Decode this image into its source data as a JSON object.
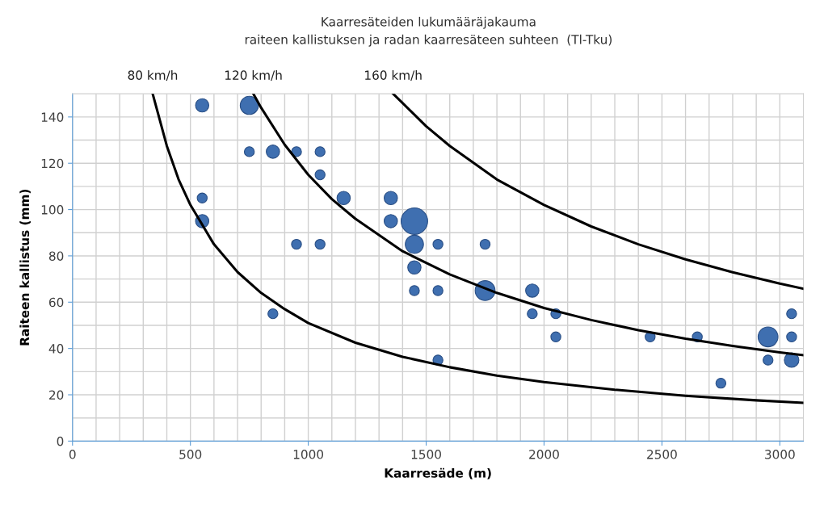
{
  "chart_data": {
    "type": "bubble",
    "title": "Kaarresäteiden lukumääräjakauma",
    "subtitle": "raiteen kallistuksen ja radan kaarresäteen suhteen  (Tl-Tku)",
    "xlabel": "Kaarresäde (m)",
    "ylabel": "Raiteen kallistus (mm)",
    "xlim": [
      0,
      3100
    ],
    "ylim": [
      0,
      150
    ],
    "xticks": [
      0,
      {
        "value": 100,
        "label": null
      },
      {
        "value": 200,
        "label": null
      },
      {
        "value": 300,
        "label": null
      },
      {
        "value": 400,
        "label": null
      },
      500,
      {
        "value": 600,
        "label": null
      },
      {
        "value": 700,
        "label": null
      },
      {
        "value": 800,
        "label": null
      },
      {
        "value": 900,
        "label": null
      },
      1000,
      {
        "value": 1100,
        "label": null
      },
      {
        "value": 1200,
        "label": null
      },
      {
        "value": 1300,
        "label": null
      },
      {
        "value": 1400,
        "label": null
      },
      1500,
      {
        "value": 1600,
        "label": null
      },
      {
        "value": 1700,
        "label": null
      },
      {
        "value": 1800,
        "label": null
      },
      {
        "value": 1900,
        "label": null
      },
      2000,
      {
        "value": 2100,
        "label": null
      },
      {
        "value": 2200,
        "label": null
      },
      {
        "value": 2300,
        "label": null
      },
      {
        "value": 2400,
        "label": null
      },
      2500,
      {
        "value": 2600,
        "label": null
      },
      {
        "value": 2700,
        "label": null
      },
      {
        "value": 2800,
        "label": null
      },
      {
        "value": 2900,
        "label": null
      },
      3000
    ],
    "yticks": [
      0,
      {
        "value": 10,
        "label": null
      },
      20,
      {
        "value": 30,
        "label": null
      },
      40,
      {
        "value": 50,
        "label": null
      },
      60,
      {
        "value": 70,
        "label": null
      },
      80,
      {
        "value": 90,
        "label": null
      },
      100,
      {
        "value": 110,
        "label": null
      },
      120,
      {
        "value": 130,
        "label": null
      },
      140
    ],
    "grid": true,
    "legend": false,
    "series": [
      {
        "color": "#3f6fb0",
        "x": [
          550,
          750,
          750,
          850,
          950,
          1050,
          1050,
          550,
          1150,
          1350,
          550,
          1350,
          1450,
          950,
          1050,
          1450,
          1550,
          1750,
          1450,
          1450,
          1550,
          1750,
          1950,
          850,
          1950,
          2050,
          3050,
          2050,
          2450,
          2650,
          2950,
          3050,
          1550,
          2950,
          3050,
          2750
        ],
        "values": [
          145,
          145,
          125,
          125,
          125,
          125,
          115,
          105,
          105,
          105,
          95,
          95,
          95,
          85,
          85,
          85,
          85,
          85,
          75,
          65,
          65,
          65,
          65,
          55,
          55,
          55,
          55,
          45,
          45,
          45,
          45,
          45,
          35,
          35,
          35,
          25
        ],
        "sizes": [
          0.25,
          0.47,
          0.14,
          0.25,
          0.14,
          0.14,
          0.14,
          0.14,
          0.25,
          0.25,
          0.25,
          0.25,
          1,
          0.14,
          0.14,
          0.47,
          0.14,
          0.14,
          0.25,
          0.14,
          0.14,
          0.56,
          0.25,
          0.14,
          0.14,
          0.14,
          0.14,
          0.14,
          0.14,
          0.14,
          0.56,
          0.14,
          0.14,
          0.14,
          0.3,
          0.14
        ]
      },
      {
        "type": "line",
        "name": "80 km/h",
        "color": "#000000",
        "x": [
          340,
          400,
          450,
          500,
          600,
          700,
          800,
          900,
          1000,
          1200,
          1400,
          1600,
          1800,
          2000,
          2300,
          2600,
          2900,
          3100
        ],
        "values": [
          150,
          127.5,
          113,
          102,
          85,
          73,
          64,
          57,
          51,
          42.5,
          36.4,
          31.9,
          28.3,
          25.5,
          22.2,
          19.6,
          17.6,
          16.5
        ]
      },
      {
        "type": "line",
        "name": "120 km/h",
        "color": "#000000",
        "x": [
          767,
          800,
          900,
          1000,
          1100,
          1200,
          1400,
          1600,
          1800,
          2000,
          2200,
          2400,
          2600,
          2800,
          3000,
          3100
        ],
        "values": [
          150,
          144,
          128,
          115,
          104.5,
          96,
          82,
          72,
          64,
          57.5,
          52.3,
          47.9,
          44.2,
          41.1,
          38.3,
          37.1
        ]
      },
      {
        "type": "line",
        "name": "160 km/h",
        "color": "#000000",
        "x": [
          1360,
          1400,
          1500,
          1600,
          1800,
          2000,
          2200,
          2400,
          2600,
          2800,
          3000,
          3100
        ],
        "values": [
          150,
          146,
          136,
          127.5,
          113,
          102,
          92.7,
          85,
          78.5,
          72.9,
          68,
          65.8
        ]
      }
    ]
  }
}
